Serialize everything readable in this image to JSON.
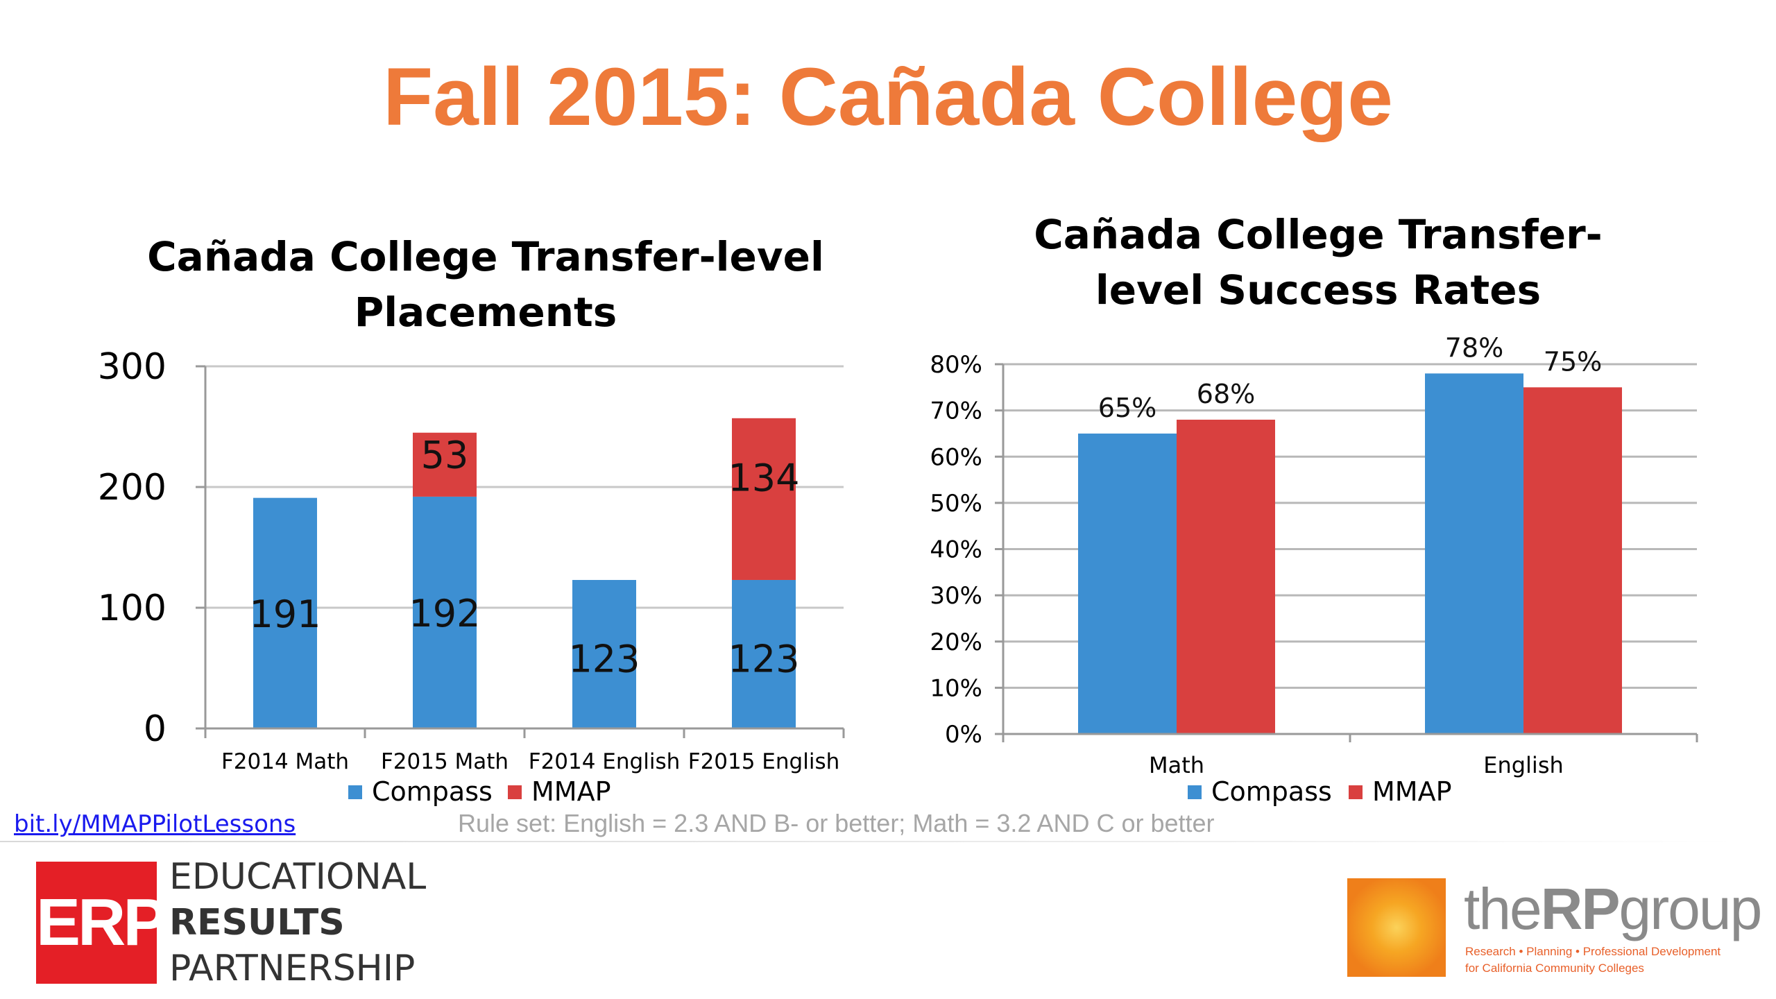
{
  "slide": {
    "title": "Fall 2015: Cañada College",
    "link": "bit.ly/MMAPPilotLessons",
    "rule_set": "Rule set: English = 2.3 AND B- or better; Math = 3.2 AND C or better"
  },
  "logos": {
    "erp": {
      "mark": "ERP",
      "lines": [
        "EDUCATIONAL",
        "RESULTS",
        "PARTNERSHIP"
      ]
    },
    "rp": {
      "name_light": "the",
      "name_bold": "RP",
      "name_light2": "group",
      "tag1": "Research • Planning • Professional Development",
      "tag2": "for California Community Colleges"
    }
  },
  "colors": {
    "title": "#ee7a3a",
    "compass": "#3d8fd2",
    "mmap": "#d9403f"
  },
  "chart_data": [
    {
      "type": "bar",
      "stacked": true,
      "title_lines": [
        "Cañada College Transfer-level",
        "Placements"
      ],
      "categories": [
        "F2014 Math",
        "F2015 Math",
        "F2014 English",
        "F2015 English"
      ],
      "series": [
        {
          "name": "Compass",
          "values": [
            191,
            192,
            123,
            123
          ]
        },
        {
          "name": "MMAP",
          "values": [
            0,
            53,
            0,
            134
          ]
        }
      ],
      "ylim": [
        0,
        300
      ],
      "yticks": [
        0,
        100,
        200,
        300
      ],
      "grid": true,
      "legend": "bottom"
    },
    {
      "type": "bar",
      "stacked": false,
      "title_lines": [
        "Cañada College Transfer-",
        "level Success Rates"
      ],
      "categories": [
        "Math",
        "English"
      ],
      "series": [
        {
          "name": "Compass",
          "values": [
            65,
            78
          ],
          "labels": [
            "65%",
            "78%"
          ]
        },
        {
          "name": "MMAP",
          "values": [
            68,
            75
          ],
          "labels": [
            "68%",
            "75%"
          ]
        }
      ],
      "ylim": [
        0,
        80
      ],
      "yticks": [
        "0%",
        "10%",
        "20%",
        "30%",
        "40%",
        "50%",
        "60%",
        "70%",
        "80%"
      ],
      "grid": true,
      "legend": "bottom"
    }
  ]
}
